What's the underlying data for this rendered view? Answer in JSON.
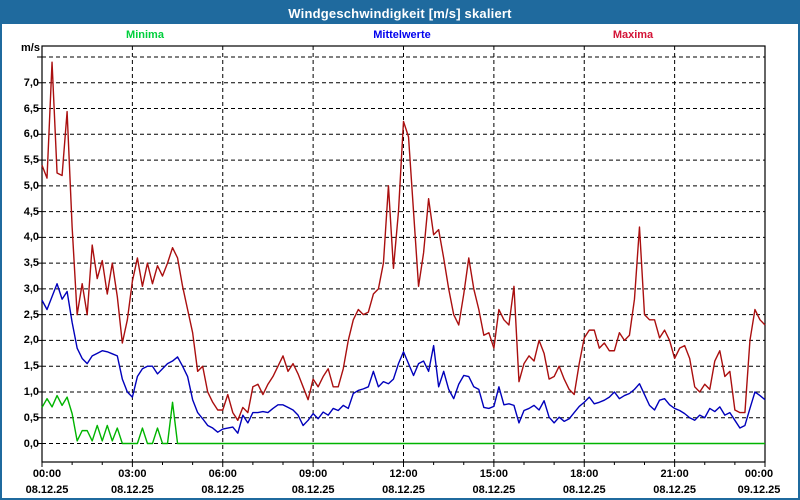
{
  "window": {
    "title": "Windgeschwindigkeit [m/s] skaliert"
  },
  "colors": {
    "header_bg": "#1f6a9e",
    "page_border": "#1f6a9e",
    "title_text": "#ffffff",
    "axis": "#000000",
    "grid": "#000000",
    "plot_bg": "#ffffff"
  },
  "y_axis": {
    "unit": "m/s"
  },
  "chart_data": {
    "type": "line",
    "title": "Windgeschwindigkeit [m/s] skaliert",
    "interval_minutes": 10,
    "xlim_hours": [
      0,
      24
    ],
    "ylim": [
      0,
      7.5
    ],
    "y_tick_step": 0.5,
    "grid": "dashed",
    "legend_position": "top",
    "y_tick_labels": [
      "0,0",
      "0,5",
      "1,0",
      "1,5",
      "2,0",
      "2,5",
      "3,0",
      "3,5",
      "4,0",
      "4,5",
      "5,0",
      "5,5",
      "6,0",
      "6,5",
      "7,0"
    ],
    "x_tick_labels": [
      "00:00",
      "03:00",
      "06:00",
      "09:00",
      "12:00",
      "15:00",
      "18:00",
      "21:00",
      "00:00"
    ],
    "x_tick_dates": [
      "08.12.25",
      "08.12.25",
      "08.12.25",
      "08.12.25",
      "08.12.25",
      "08.12.25",
      "08.12.25",
      "08.12.25",
      "09.12.25"
    ],
    "series": [
      {
        "name": "Minima",
        "label_color": "#00cf3c",
        "line_color": "#00b400",
        "values": [
          0.7,
          0.87,
          0.71,
          0.93,
          0.74,
          0.9,
          0.58,
          0.05,
          0.25,
          0.25,
          0.05,
          0.35,
          0.05,
          0.35,
          0.05,
          0.3,
          0.0,
          0.0,
          0.0,
          0.0,
          0.3,
          0.0,
          0.0,
          0.3,
          0.0,
          0.0,
          0.8,
          0.0,
          0.0,
          0.0,
          0.0,
          0.0,
          0.0,
          0.0,
          0.0,
          0.0,
          0.0,
          0.0,
          0.0,
          0.0,
          0.0,
          0.0,
          0.0,
          0.0,
          0.0,
          0.0,
          0.0,
          0.0,
          0.0,
          0.0,
          0.0,
          0.0,
          0.0,
          0.0,
          0.0,
          0.0,
          0.0,
          0.0,
          0.0,
          0.0,
          0.0,
          0.0,
          0.0,
          0.0,
          0.0,
          0.0,
          0.0,
          0.0,
          0.0,
          0.0,
          0.0,
          0.0,
          0.0,
          0.0,
          0.0,
          0.0,
          0.0,
          0.0,
          0.0,
          0.0,
          0.0,
          0.0,
          0.0,
          0.0,
          0.0,
          0.0,
          0.0,
          0.0,
          0.0,
          0.0,
          0.0,
          0.0,
          0.0,
          0.0,
          0.0,
          0.0,
          0.0,
          0.0,
          0.0,
          0.0,
          0.0,
          0.0,
          0.0,
          0.0,
          0.0,
          0.0,
          0.0,
          0.0,
          0.0,
          0.0,
          0.0,
          0.0,
          0.0,
          0.0,
          0.0,
          0.0,
          0.0,
          0.0,
          0.0,
          0.0,
          0.0,
          0.0,
          0.0,
          0.0,
          0.0,
          0.0,
          0.0,
          0.0,
          0.0,
          0.0,
          0.0,
          0.0,
          0.0,
          0.0,
          0.0,
          0.0,
          0.0,
          0.0,
          0.0,
          0.0,
          0.0,
          0.0,
          0.0,
          0.0,
          0.0
        ]
      },
      {
        "name": "Mittelwerte",
        "label_color": "#0000ee",
        "line_color": "#0000bb",
        "values": [
          2.78,
          2.6,
          2.85,
          3.1,
          2.8,
          2.95,
          2.35,
          1.85,
          1.65,
          1.55,
          1.7,
          1.75,
          1.8,
          1.78,
          1.74,
          1.7,
          1.25,
          1.0,
          0.9,
          1.3,
          1.45,
          1.5,
          1.5,
          1.35,
          1.45,
          1.55,
          1.6,
          1.68,
          1.5,
          1.3,
          0.85,
          0.6,
          0.48,
          0.35,
          0.3,
          0.22,
          0.28,
          0.3,
          0.32,
          0.2,
          0.55,
          0.4,
          0.6,
          0.6,
          0.62,
          0.6,
          0.68,
          0.75,
          0.75,
          0.7,
          0.65,
          0.55,
          0.35,
          0.45,
          0.58,
          0.48,
          0.61,
          0.55,
          0.68,
          0.64,
          0.74,
          0.68,
          0.97,
          1.03,
          1.06,
          1.1,
          1.4,
          1.1,
          1.2,
          1.16,
          1.25,
          1.55,
          1.78,
          1.55,
          1.32,
          1.55,
          1.6,
          1.4,
          1.9,
          1.1,
          1.4,
          1.05,
          0.87,
          1.15,
          1.32,
          1.3,
          1.1,
          1.05,
          0.7,
          0.68,
          0.72,
          1.1,
          0.75,
          0.77,
          0.74,
          0.4,
          0.64,
          0.68,
          0.74,
          0.65,
          0.83,
          0.51,
          0.4,
          0.51,
          0.43,
          0.48,
          0.6,
          0.72,
          0.8,
          0.9,
          0.77,
          0.8,
          0.84,
          0.9,
          1.0,
          0.87,
          0.93,
          0.97,
          1.05,
          1.16,
          0.95,
          0.74,
          0.65,
          0.84,
          0.87,
          0.75,
          0.68,
          0.64,
          0.58,
          0.5,
          0.45,
          0.55,
          0.5,
          0.68,
          0.62,
          0.71,
          0.55,
          0.6,
          0.45,
          0.3,
          0.35,
          0.68,
          1.0,
          0.93,
          0.85
        ]
      },
      {
        "name": "Maxima",
        "label_color": "#d41437",
        "line_color": "#aa0f0f",
        "values": [
          5.4,
          5.15,
          7.4,
          5.25,
          5.2,
          6.44,
          4.2,
          2.5,
          3.1,
          2.5,
          3.85,
          3.2,
          3.55,
          2.9,
          3.5,
          2.85,
          1.95,
          2.4,
          3.15,
          3.6,
          3.05,
          3.5,
          3.1,
          3.45,
          3.25,
          3.5,
          3.8,
          3.6,
          3.05,
          2.6,
          2.15,
          1.4,
          1.5,
          1.0,
          0.8,
          0.65,
          0.65,
          0.95,
          0.6,
          0.45,
          0.7,
          0.6,
          1.1,
          1.15,
          0.95,
          1.15,
          1.3,
          1.5,
          1.7,
          1.4,
          1.55,
          1.35,
          1.1,
          0.85,
          1.25,
          1.1,
          1.3,
          1.45,
          1.1,
          1.1,
          1.45,
          2.0,
          2.4,
          2.6,
          2.5,
          2.55,
          2.9,
          3.0,
          3.5,
          5.0,
          3.4,
          4.5,
          6.25,
          5.95,
          4.5,
          3.05,
          3.7,
          4.75,
          4.05,
          4.15,
          3.6,
          3.0,
          2.5,
          2.3,
          2.9,
          3.6,
          3.0,
          2.6,
          2.1,
          2.15,
          1.85,
          2.6,
          2.4,
          2.3,
          3.05,
          1.2,
          1.55,
          1.7,
          1.6,
          2.0,
          1.75,
          1.25,
          1.3,
          1.5,
          1.25,
          1.05,
          0.95,
          1.55,
          2.05,
          2.2,
          2.2,
          1.85,
          1.95,
          1.8,
          1.8,
          2.15,
          2.0,
          2.1,
          2.8,
          4.2,
          2.5,
          2.4,
          2.4,
          2.05,
          2.2,
          2.0,
          1.65,
          1.85,
          1.9,
          1.65,
          1.1,
          1.0,
          1.15,
          1.05,
          1.6,
          1.8,
          1.3,
          1.4,
          0.65,
          0.6,
          0.6,
          2.0,
          2.6,
          2.4,
          2.3
        ]
      }
    ]
  }
}
